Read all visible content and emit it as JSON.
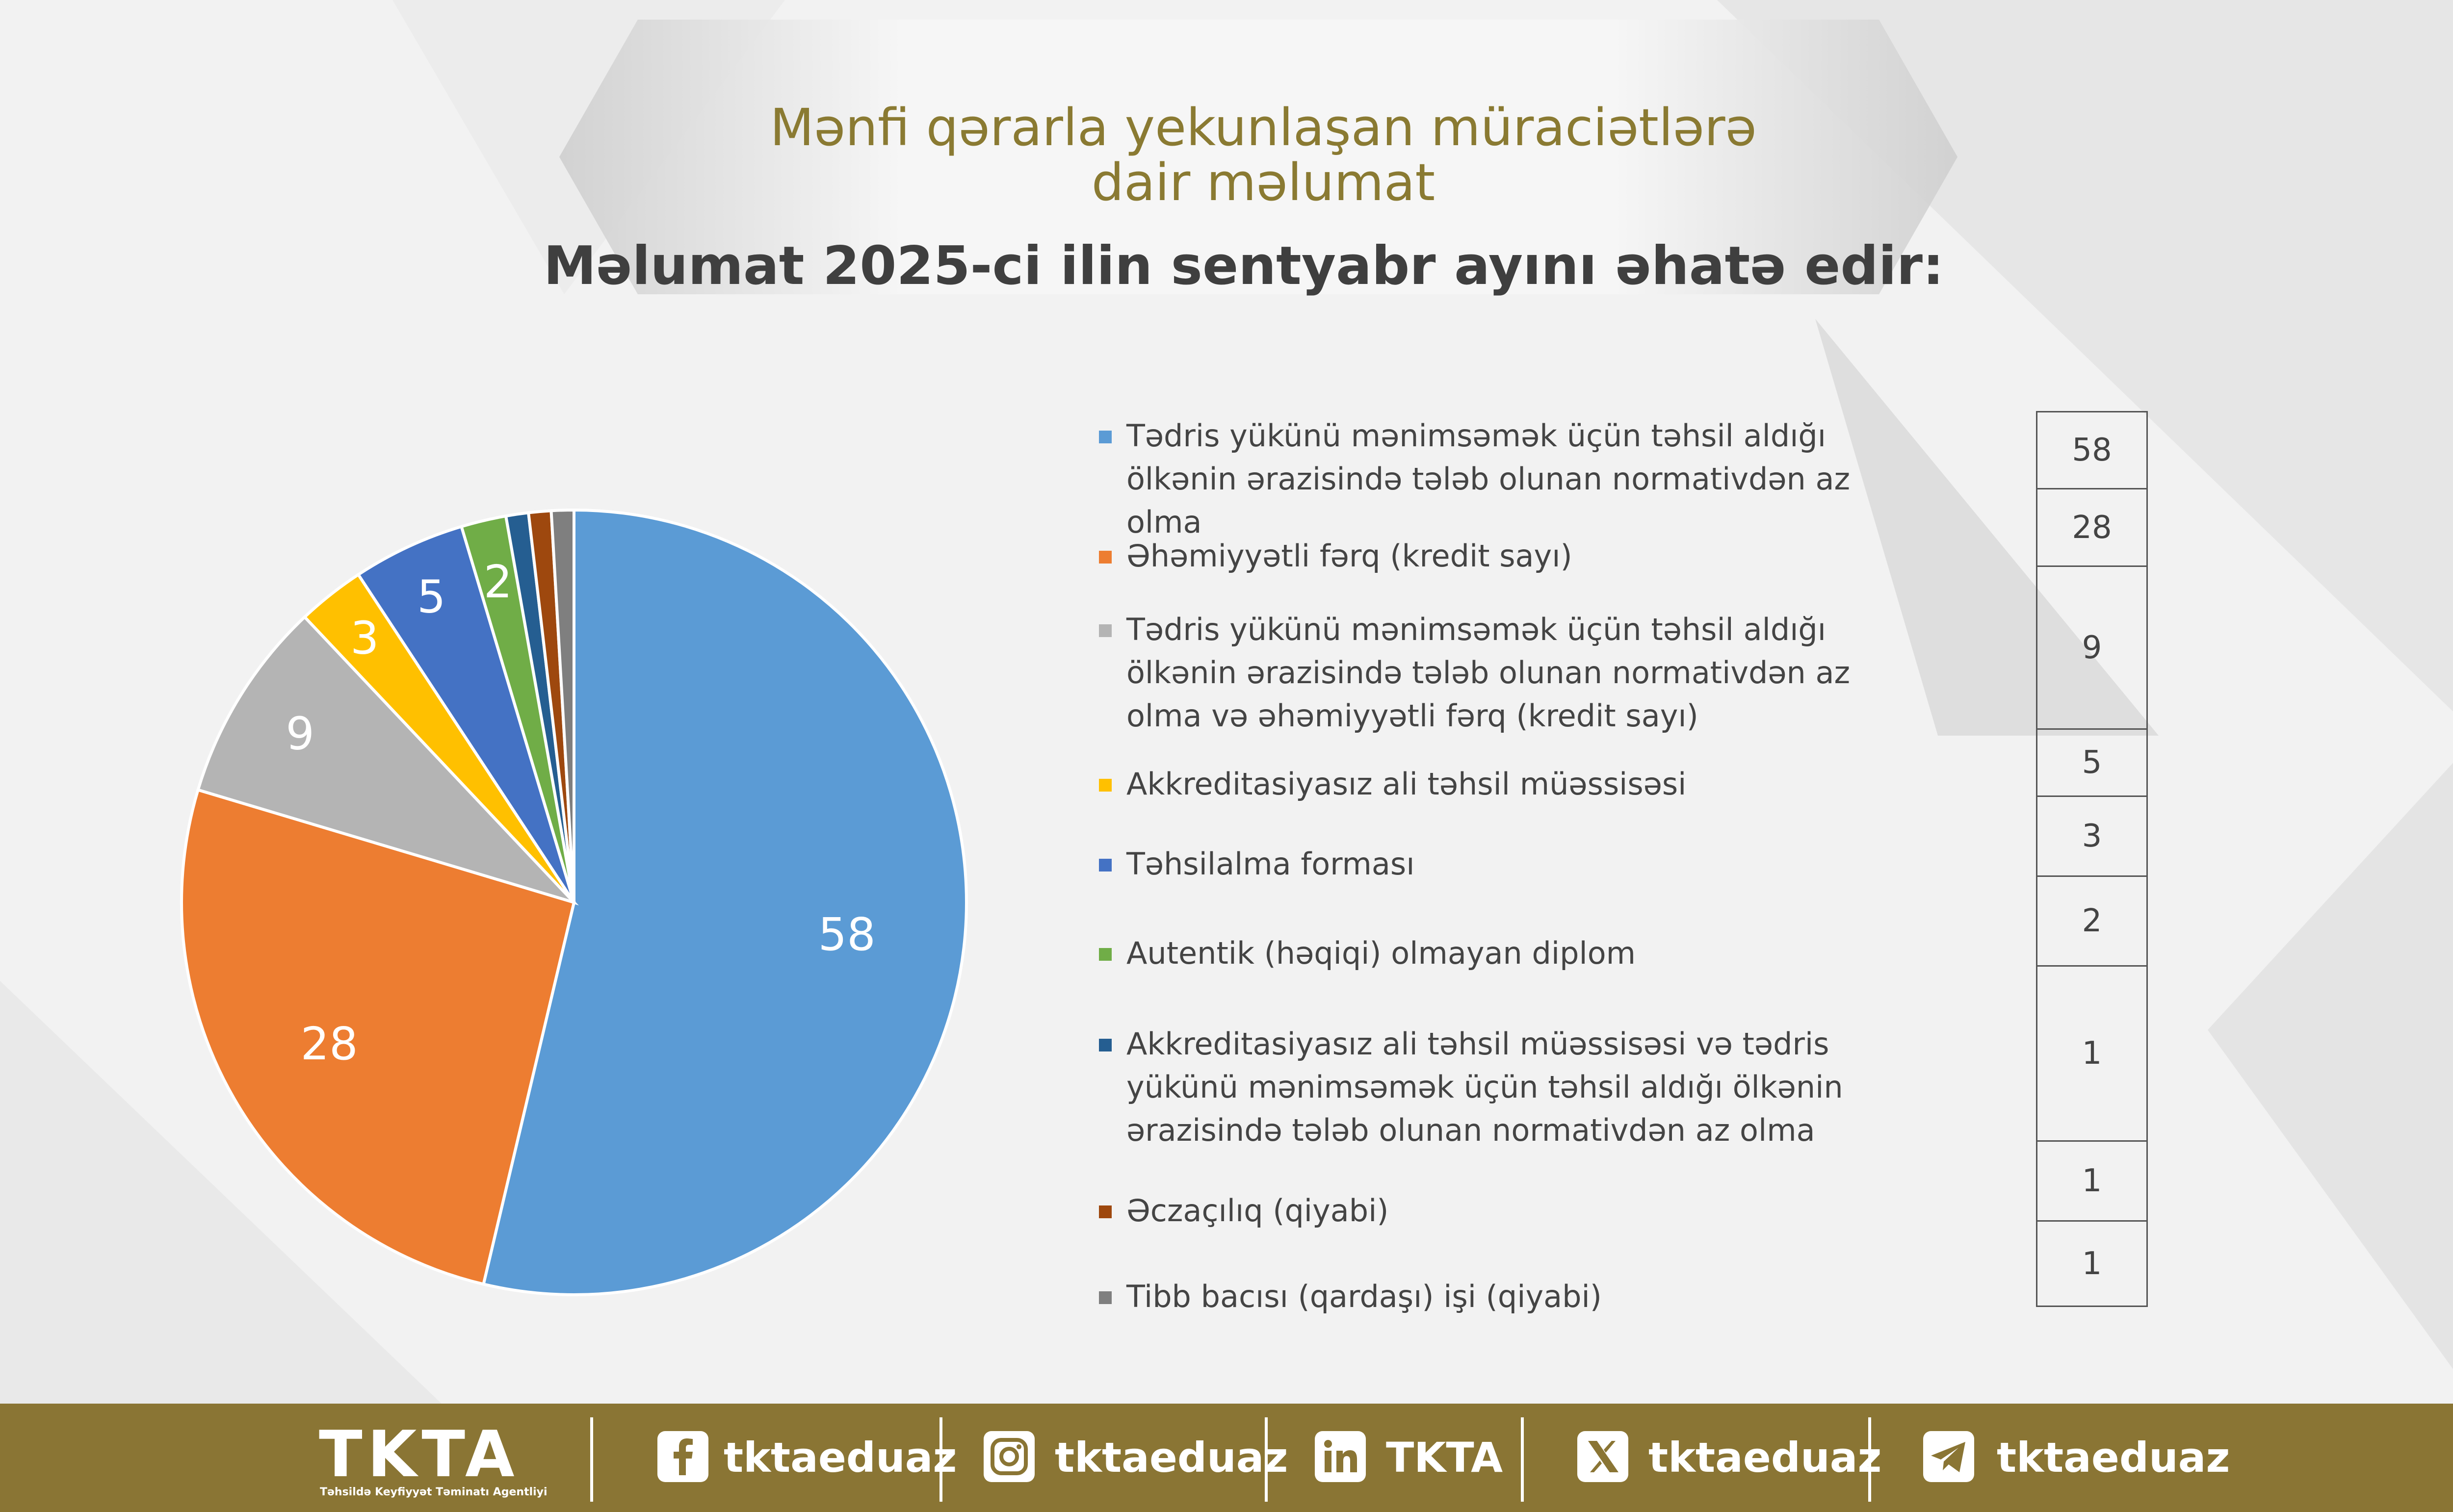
{
  "header": {
    "title_line1": "Mənfi qərarla yekunlaşan müraciətlərə",
    "title_line2": "dair məlumat",
    "subtitle": "Məlumat 2025-ci ilin sentyabr ayını əhatə edir:"
  },
  "colors": {
    "accent": "#8a7534",
    "title_color": "#8a7a32"
  },
  "chart_data": {
    "type": "pie",
    "categories": [
      "Tədris yükünü mənimsəmək üçün təhsil aldığı ölkənin ərazisində tələb olunan normativdən az olma",
      "Əhəmiyyətli fərq (kredit sayı)",
      "Tədris yükünü mənimsəmək üçün təhsil aldığı ölkənin ərazisində tələb olunan normativdən az olma və əhəmiyyətli fərq (kredit sayı)",
      "Akkreditasiyasız ali təhsil müəssisəsi",
      "Təhsilalma forması",
      "Autentik (həqiqi) olmayan diplom",
      "Akkreditasiyasız ali təhsil müəssisəsi və tədris yükünü mənimsəmək üçün təhsil aldığı ölkənin ərazisində tələb olunan normativdən az olma",
      "Əczaçılıq (qiyabi)",
      "Tibb bacısı (qardaşı) işi (qiyabi)"
    ],
    "values": [
      58,
      28,
      9,
      3,
      5,
      2,
      1,
      1,
      1
    ],
    "colors": [
      "#5b9bd5",
      "#ed7d31",
      "#b4b4b4",
      "#ffc000",
      "#4472c4",
      "#70ad47",
      "#255e91",
      "#9e480e",
      "#7f7f7f"
    ],
    "slice_labels": [
      "58",
      "28",
      "9",
      "3",
      "5",
      "2",
      "",
      "",
      ""
    ],
    "legend_placement": "right"
  },
  "legend": [
    {
      "text": "Tədris yükünü mənimsəmək üçün təhsil aldığı ölkənin ərazisində tələb olunan normativdən az olma",
      "color": "#5b9bd5"
    },
    {
      "text": "Əhəmiyyətli fərq (kredit sayı)",
      "color": "#ed7d31"
    },
    {
      "text": "Tədris yükünü mənimsəmək üçün təhsil aldığı ölkənin ərazisində tələb olunan normativdən az olma və əhəmiyyətli fərq (kredit sayı)",
      "color": "#b4b4b4"
    },
    {
      "text": "Akkreditasiyasız ali təhsil müəssisəsi",
      "color": "#ffc000"
    },
    {
      "text": "Təhsilalma forması",
      "color": "#4472c4"
    },
    {
      "text": "Autentik (həqiqi) olmayan diplom",
      "color": "#70ad47"
    },
    {
      "text": "Akkreditasiyasız ali təhsil müəssisəsi və tədris yükünü mənimsəmək üçün təhsil aldığı ölkənin ərazisində tələb olunan normativdən az olma",
      "color": "#255e91"
    },
    {
      "text": "Əczaçılıq (qiyabi)",
      "color": "#9e480e"
    },
    {
      "text": "Tibb bacısı (qardaşı) işi (qiyabi)",
      "color": "#7f7f7f"
    }
  ],
  "value_table": [
    "58",
    "28",
    "9",
    "5",
    "3",
    "2",
    "1",
    "1",
    "1"
  ],
  "footer": {
    "logo": "TKTA",
    "logo_subtitle": "Təhsildə Keyfiyyət Təminatı Agentliyi",
    "social": [
      {
        "icon": "facebook-icon",
        "label": "tktaeduaz"
      },
      {
        "icon": "instagram-icon",
        "label": "tktaeduaz"
      },
      {
        "icon": "linkedin-icon",
        "label": "TKTA"
      },
      {
        "icon": "x-icon",
        "label": "tktaeduaz"
      },
      {
        "icon": "telegram-icon",
        "label": "tktaeduaz"
      }
    ]
  }
}
